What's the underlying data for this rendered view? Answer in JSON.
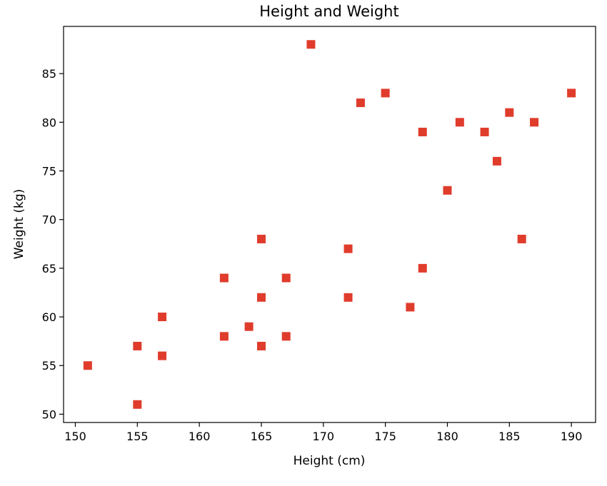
{
  "chart_data": {
    "type": "scatter",
    "title": "Height and Weight",
    "xlabel": "Height (cm)",
    "ylabel": "Weight (kg)",
    "xlim": [
      149.05,
      191.95
    ],
    "ylim": [
      49.15,
      89.85
    ],
    "xticks": [
      150,
      155,
      160,
      165,
      170,
      175,
      180,
      185,
      190
    ],
    "yticks": [
      50,
      55,
      60,
      65,
      70,
      75,
      80,
      85
    ],
    "grid": false,
    "marker": "square",
    "color": "#e03c2c",
    "series": [
      {
        "points": [
          {
            "x": 151,
            "y": 55
          },
          {
            "x": 155,
            "y": 57
          },
          {
            "x": 155,
            "y": 51
          },
          {
            "x": 157,
            "y": 60
          },
          {
            "x": 157,
            "y": 56
          },
          {
            "x": 162,
            "y": 64
          },
          {
            "x": 162,
            "y": 58
          },
          {
            "x": 164,
            "y": 59
          },
          {
            "x": 165,
            "y": 68
          },
          {
            "x": 165,
            "y": 62
          },
          {
            "x": 165,
            "y": 57
          },
          {
            "x": 167,
            "y": 64
          },
          {
            "x": 167,
            "y": 58
          },
          {
            "x": 169,
            "y": 88
          },
          {
            "x": 172,
            "y": 67
          },
          {
            "x": 172,
            "y": 62
          },
          {
            "x": 173,
            "y": 82
          },
          {
            "x": 175,
            "y": 83
          },
          {
            "x": 177,
            "y": 61
          },
          {
            "x": 178,
            "y": 79
          },
          {
            "x": 178,
            "y": 65
          },
          {
            "x": 180,
            "y": 73
          },
          {
            "x": 181,
            "y": 80
          },
          {
            "x": 183,
            "y": 79
          },
          {
            "x": 184,
            "y": 76
          },
          {
            "x": 185,
            "y": 81
          },
          {
            "x": 186,
            "y": 68
          },
          {
            "x": 187,
            "y": 80
          },
          {
            "x": 190,
            "y": 83
          }
        ]
      }
    ]
  }
}
